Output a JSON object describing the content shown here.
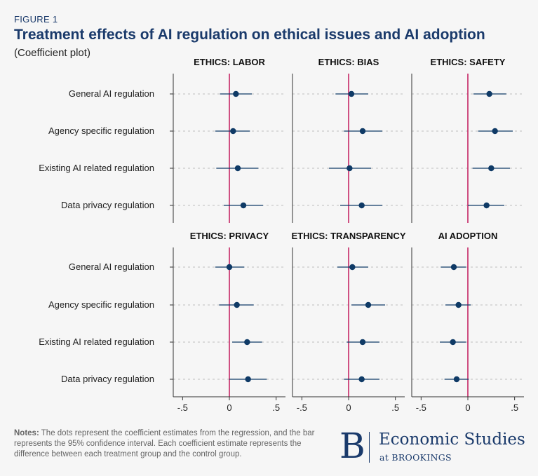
{
  "figure_label": "FIGURE 1",
  "title": "Treatment effects of AI regulation on ethical issues and AI adoption",
  "subtitle": "(Coefficient plot)",
  "notes": {
    "label": "Notes:",
    "text": " The dots represent the coefficient estimates from the regression, and the bar represents the 95% confidence interval. Each coefficient estimate represents the difference between each treatment group and the control group."
  },
  "logo": {
    "letter": "B",
    "line1": "Economic Studies",
    "line2": "at BROOKINGS"
  },
  "colors": {
    "point": "#0f3a66",
    "reference_line": "#c2185b",
    "grid": "#bdbdbd",
    "title": "#1a3a6b"
  },
  "chart_data": {
    "type": "coefficient-plot",
    "categories": [
      "General AI regulation",
      "Agency specific regulation",
      "Existing AI related regulation",
      "Data privacy regulation"
    ],
    "xlim": [
      -0.6,
      0.6
    ],
    "xticks": [
      -0.5,
      0,
      0.5
    ],
    "xtick_labels": [
      "-.5",
      "0",
      ".5"
    ],
    "reference_x": 0,
    "panels": [
      {
        "title": "ETHICS: LABOR",
        "estimates": [
          0.07,
          0.04,
          0.09,
          0.15
        ],
        "ci_low": [
          -0.1,
          -0.15,
          -0.14,
          -0.06
        ],
        "ci_high": [
          0.24,
          0.22,
          0.31,
          0.36
        ]
      },
      {
        "title": "ETHICS: BIAS",
        "estimates": [
          0.03,
          0.15,
          0.01,
          0.14
        ],
        "ci_low": [
          -0.14,
          -0.05,
          -0.21,
          -0.09
        ],
        "ci_high": [
          0.21,
          0.36,
          0.24,
          0.36
        ]
      },
      {
        "title": "ETHICS: SAFETY",
        "estimates": [
          0.23,
          0.29,
          0.25,
          0.2
        ],
        "ci_low": [
          0.06,
          0.11,
          0.05,
          0.0
        ],
        "ci_high": [
          0.41,
          0.48,
          0.45,
          0.39
        ]
      },
      {
        "title": "ETHICS: PRIVACY",
        "estimates": [
          0.0,
          0.08,
          0.19,
          0.2
        ],
        "ci_low": [
          -0.15,
          -0.11,
          0.03,
          0.0
        ],
        "ci_high": [
          0.16,
          0.26,
          0.35,
          0.4
        ]
      },
      {
        "title": "ETHICS: TRANSPARENCY",
        "estimates": [
          0.04,
          0.21,
          0.15,
          0.14
        ],
        "ci_low": [
          -0.12,
          0.03,
          -0.02,
          -0.05
        ],
        "ci_high": [
          0.21,
          0.39,
          0.33,
          0.33
        ]
      },
      {
        "title": "AI ADOPTION",
        "estimates": [
          -0.15,
          -0.1,
          -0.16,
          -0.12
        ],
        "ci_low": [
          -0.29,
          -0.24,
          -0.3,
          -0.25
        ],
        "ci_high": [
          -0.02,
          0.03,
          -0.02,
          0.01
        ]
      }
    ]
  }
}
